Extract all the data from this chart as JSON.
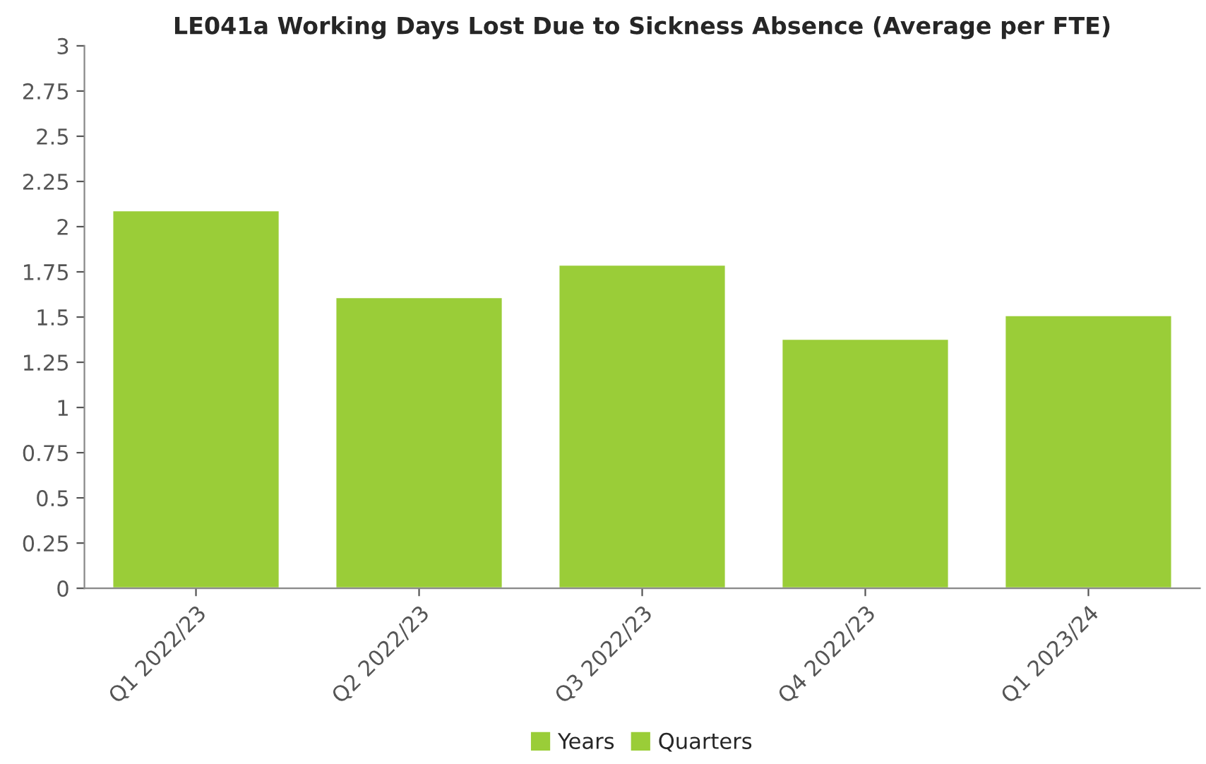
{
  "chart_data": {
    "type": "bar",
    "title": "LE041a Working Days Lost Due to Sickness Absence (Average per FTE)",
    "categories": [
      "Q1 2022/23",
      "Q2 2022/23",
      "Q3 2022/23",
      "Q4 2022/23",
      "Q1 2023/24"
    ],
    "series": [
      {
        "name": "Years",
        "color": "#9acd38",
        "values": [
          null,
          null,
          null,
          null,
          null
        ]
      },
      {
        "name": "Quarters",
        "color": "#9acd38",
        "values": [
          2.09,
          1.61,
          1.79,
          1.38,
          1.51
        ]
      }
    ],
    "ylim": [
      0,
      3
    ],
    "yticks": [
      0,
      0.25,
      0.5,
      0.75,
      1,
      1.25,
      1.5,
      1.75,
      2,
      2.25,
      2.5,
      2.75,
      3
    ],
    "grid": false,
    "legend": "bottom"
  }
}
